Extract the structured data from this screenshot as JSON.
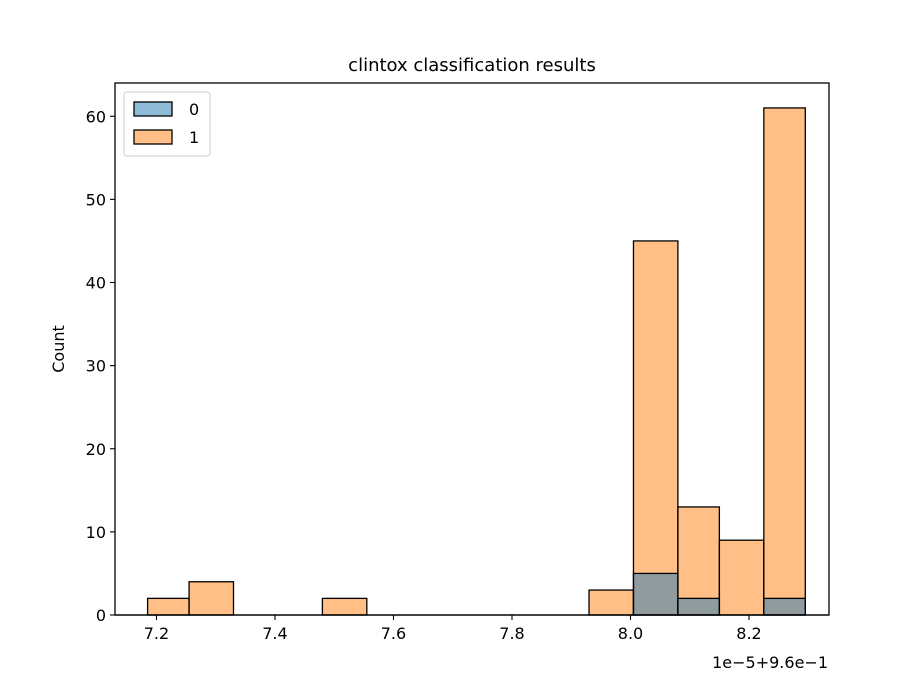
{
  "chart_data": {
    "type": "bar",
    "title": "clintox classification results",
    "xlabel": "",
    "ylabel": "Count",
    "x_offset_label": "1e−5+9.6e−1",
    "xlim": [
      7.13,
      8.335
    ],
    "ylim": [
      0,
      64
    ],
    "x_ticks": [
      7.2,
      7.4,
      7.6,
      7.8,
      8.0,
      8.2
    ],
    "x_tick_labels": [
      "7.2",
      "7.4",
      "7.6",
      "7.8",
      "8.0",
      "8.2"
    ],
    "y_ticks": [
      0,
      10,
      20,
      30,
      40,
      50,
      60
    ],
    "y_tick_labels": [
      "0",
      "10",
      "20",
      "30",
      "40",
      "50",
      "60"
    ],
    "grid": false,
    "legend_position": "top-left",
    "series": [
      {
        "name": "0",
        "color": "#1f77b4",
        "bins": [
          {
            "x0": 8.005,
            "x1": 8.08,
            "count": 5
          },
          {
            "x0": 8.08,
            "x1": 8.15,
            "count": 2
          },
          {
            "x0": 8.225,
            "x1": 8.295,
            "count": 2
          }
        ]
      },
      {
        "name": "1",
        "color": "#ff7f0e",
        "bins": [
          {
            "x0": 7.185,
            "x1": 7.255,
            "count": 2
          },
          {
            "x0": 7.255,
            "x1": 7.33,
            "count": 4
          },
          {
            "x0": 7.48,
            "x1": 7.555,
            "count": 2
          },
          {
            "x0": 7.93,
            "x1": 8.005,
            "count": 3
          },
          {
            "x0": 8.005,
            "x1": 8.08,
            "count": 45
          },
          {
            "x0": 8.08,
            "x1": 8.15,
            "count": 13
          },
          {
            "x0": 8.15,
            "x1": 8.225,
            "count": 9
          },
          {
            "x0": 8.225,
            "x1": 8.295,
            "count": 61
          }
        ]
      }
    ]
  }
}
